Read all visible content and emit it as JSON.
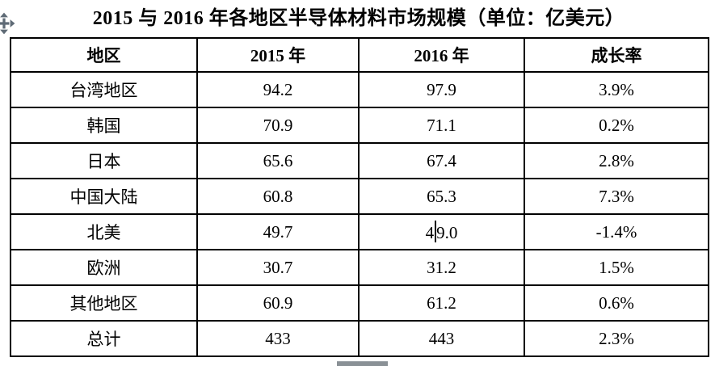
{
  "title": "2015 与 2016 年各地区半导体材料市场规模（单位：亿美元）",
  "table": {
    "headers": [
      "地区",
      "2015 年",
      "2016 年",
      "成长率"
    ],
    "rows": [
      [
        "台湾地区",
        "94.2",
        "97.9",
        "3.9%"
      ],
      [
        "韩国",
        "70.9",
        "71.1",
        "0.2%"
      ],
      [
        "日本",
        "65.6",
        "67.4",
        "2.8%"
      ],
      [
        "中国大陆",
        "60.8",
        "65.3",
        "7.3%"
      ],
      [
        "北美",
        "49.7",
        "49.0",
        "-1.4%"
      ],
      [
        "欧洲",
        "30.7",
        "31.2",
        "1.5%"
      ],
      [
        "其他地区",
        "60.9",
        "61.2",
        "0.6%"
      ],
      [
        "总计",
        "433",
        "443",
        "2.3%"
      ]
    ]
  },
  "caret": {
    "row": 4,
    "col": 2,
    "after_chars": 1
  },
  "icons": {
    "move_handle": "four-way-move-arrows",
    "scrollbar_thumb": "horizontal-scrollbar-thumb"
  },
  "colors": {
    "text": "#000000",
    "border": "#000000",
    "move_handle": "#5f6b76",
    "scrollbar_thumb": "#8a9196"
  }
}
